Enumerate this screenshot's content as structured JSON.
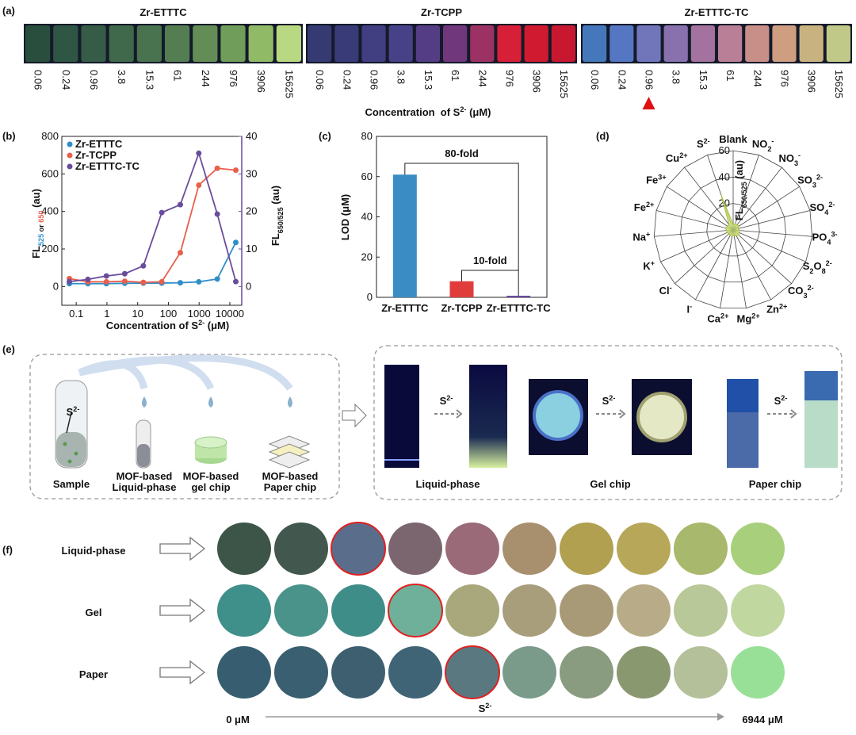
{
  "panel_a": {
    "letter": "(a)",
    "titles": [
      "Zr-ETTTC",
      "Zr-TCPP",
      "Zr-ETTTC-TC"
    ],
    "concentrations": [
      0.06,
      0.24,
      0.96,
      3.8,
      15.3,
      61,
      244,
      976,
      3906,
      15625
    ],
    "vial_colors": [
      [
        "#2c5240",
        "#325a46",
        "#3a624a",
        "#44704e",
        "#4e7a52",
        "#5a8656",
        "#6a965a",
        "#7aa85e",
        "#9cc86c",
        "#c8e88a"
      ],
      [
        "#3a3d7a",
        "#3c3e7e",
        "#45418a",
        "#4c4490",
        "#5a408c",
        "#7a3a84",
        "#a83468",
        "#e8203a",
        "#e01a30",
        "#d81830"
      ],
      [
        "#4a80c8",
        "#5a7ed0",
        "#7a7ec8",
        "#9478b8",
        "#b07aa8",
        "#c888a0",
        "#d89890",
        "#e0a888",
        "#d8c088",
        "#d0d890"
      ]
    ],
    "arrow_at": [
      2,
      2
    ],
    "axis_label": [
      {
        "t": "Concentration  of S"
      },
      {
        "t": "2-",
        "pos": "sup"
      },
      {
        "t": " (μM)"
      }
    ]
  },
  "chart_data": [
    {
      "type": "line",
      "letter": "(b)",
      "x": [
        0.06,
        0.24,
        0.96,
        3.8,
        15.3,
        61,
        244,
        976,
        3906,
        15625
      ],
      "series": [
        {
          "name": "Zr-ETTTC",
          "color": "#2f8fc8",
          "values": [
            15,
            15,
            15,
            17,
            18,
            18,
            20,
            25,
            40,
            235
          ]
        },
        {
          "name": "Zr-TCPP",
          "color": "#e8604c",
          "values": [
            42,
            25,
            25,
            28,
            22,
            25,
            180,
            540,
            630,
            620
          ]
        },
        {
          "name": "Zr-ETTTC-TC",
          "color": "#6a4c9c",
          "axis": "y2",
          "values": [
            1.3,
            1.9,
            2.8,
            3.4,
            5.5,
            19.7,
            21.8,
            35.5,
            19.3,
            1.3
          ]
        }
      ],
      "log_x": true,
      "xlim": [
        0.034,
        24400
      ],
      "xticks": [
        0.1,
        1,
        10,
        100,
        1000,
        10000
      ],
      "ylim": [
        -100,
        800
      ],
      "yticks": [
        0,
        200,
        400,
        600,
        800
      ],
      "y2lim": [
        -5,
        40
      ],
      "y2ticks": [
        0,
        10,
        20,
        30,
        40
      ],
      "legend": "upper left",
      "xlabel": [
        {
          "t": "Concentration of S"
        },
        {
          "t": "2-",
          "pos": "sup"
        },
        {
          "t": " (μM)"
        }
      ],
      "ylabel": [
        {
          "t": "FL"
        },
        {
          "t": "525",
          "pos": "sub",
          "color": "#2f8fc8"
        },
        {
          "t": " or ",
          "pos": "sub"
        },
        {
          "t": "650",
          "pos": "sub",
          "color": "#e8604c"
        },
        {
          "t": " (au)"
        }
      ],
      "y2label": [
        {
          "t": "FL"
        },
        {
          "t": "650/525",
          "pos": "sub"
        },
        {
          "t": " (au)"
        }
      ],
      "y2color": "#6a4c9c"
    },
    {
      "type": "bar",
      "letter": "(c)",
      "categories": [
        "Zr-ETTTC",
        "Zr-TCPP",
        "Zr-ETTTC-TC"
      ],
      "values": [
        61,
        8,
        0.8
      ],
      "colors": [
        "#3a8cc4",
        "#e03c3c",
        "#6a4c9c"
      ],
      "ylim": [
        0,
        80
      ],
      "yticks": [
        0,
        20,
        40,
        60,
        80
      ],
      "ylabel": "LOD (μM)",
      "annotations": [
        "80-fold",
        "10-fold"
      ]
    },
    {
      "type": "radar",
      "letter": "(d)",
      "categories": [
        [
          {
            "t": "Blank"
          }
        ],
        [
          {
            "t": "NO"
          },
          {
            "t": "2",
            "pos": "sub"
          },
          {
            "t": "-",
            "pos": "sup"
          }
        ],
        [
          {
            "t": "NO"
          },
          {
            "t": "3",
            "pos": "sub"
          },
          {
            "t": "-",
            "pos": "sup"
          }
        ],
        [
          {
            "t": "SO"
          },
          {
            "t": "3",
            "pos": "sub"
          },
          {
            "t": "2-",
            "pos": "sup"
          }
        ],
        [
          {
            "t": "SO"
          },
          {
            "t": "4",
            "pos": "sub"
          },
          {
            "t": "2-",
            "pos": "sup"
          }
        ],
        [
          {
            "t": "PO"
          },
          {
            "t": "4",
            "pos": "sub"
          },
          {
            "t": "3-",
            "pos": "sup"
          }
        ],
        [
          {
            "t": "S"
          },
          {
            "t": "2",
            "pos": "sub"
          },
          {
            "t": "O"
          },
          {
            "t": "8",
            "pos": "sub"
          },
          {
            "t": "2-",
            "pos": "sup"
          }
        ],
        [
          {
            "t": "CO"
          },
          {
            "t": "3",
            "pos": "sub"
          },
          {
            "t": "2-",
            "pos": "sup"
          }
        ],
        [
          {
            "t": "Zn"
          },
          {
            "t": "2+",
            "pos": "sup"
          }
        ],
        [
          {
            "t": "Mg"
          },
          {
            "t": "2+",
            "pos": "sup"
          }
        ],
        [
          {
            "t": "Ca"
          },
          {
            "t": "2+",
            "pos": "sup"
          }
        ],
        [
          {
            "t": "I"
          },
          {
            "t": "-",
            "pos": "sup"
          }
        ],
        [
          {
            "t": "Cl"
          },
          {
            "t": "-",
            "pos": "sup"
          }
        ],
        [
          {
            "t": "K"
          },
          {
            "t": "+",
            "pos": "sup"
          }
        ],
        [
          {
            "t": "Na"
          },
          {
            "t": "+",
            "pos": "sup"
          }
        ],
        [
          {
            "t": "Fe"
          },
          {
            "t": "2+",
            "pos": "sup"
          }
        ],
        [
          {
            "t": "Fe"
          },
          {
            "t": "3+",
            "pos": "sup"
          }
        ],
        [
          {
            "t": "Cu"
          },
          {
            "t": "2+",
            "pos": "sup"
          }
        ],
        [
          {
            "t": "S"
          },
          {
            "t": "2-",
            "pos": "sup"
          }
        ]
      ],
      "values": [
        4,
        5,
        5,
        5,
        4,
        5,
        5,
        6,
        5,
        4,
        5,
        5,
        4,
        5,
        5,
        6,
        5,
        5,
        28
      ],
      "rlim": [
        0,
        60
      ],
      "rticks": [
        20,
        40,
        60
      ],
      "rlabel": [
        {
          "t": "FL"
        },
        {
          "t": "650/525",
          "pos": "sub"
        },
        {
          "t": " (au)"
        }
      ],
      "color": "#c8e070"
    }
  ],
  "panel_e": {
    "letter": "(e)",
    "sample": "Sample",
    "analyte": [
      {
        "t": "S"
      },
      {
        "t": "2-",
        "pos": "sup"
      }
    ],
    "platforms": [
      [
        "MOF-based",
        "Liquid-phase"
      ],
      [
        "MOF-based",
        "gel chip"
      ],
      [
        "MOF-based",
        "Paper chip"
      ]
    ],
    "results": [
      "Liquid-phase",
      "Gel chip",
      "Paper chip"
    ]
  },
  "panel_f": {
    "letter": "(f)",
    "rows": [
      {
        "name": "Liquid-phase",
        "color": "#3a9a8a",
        "highlight": 2,
        "spots": [
          "#3d5548",
          "#42584e",
          "#5a6e8c",
          "#7b6670",
          "#9a6a78",
          "#a8906e",
          "#b0a050",
          "#b6a858",
          "#a8b86c",
          "#a8d07c"
        ]
      },
      {
        "name": "Gel",
        "color": "#2fa86a",
        "highlight": 3,
        "spots": [
          "#3f8f8a",
          "#4a938a",
          "#3f8d88",
          "#6fb09a",
          "#a8a87c",
          "#a89e7c",
          "#a89a76",
          "#b8ac88",
          "#b8c898",
          "#c0d8a0"
        ]
      },
      {
        "name": "Paper",
        "color": "#7b4ea0",
        "highlight": 4,
        "spots": [
          "#365e70",
          "#3a5f70",
          "#3d5f70",
          "#3f6475",
          "#5a7880",
          "#7a9a8a",
          "#8a9c80",
          "#8a9870",
          "#b4c09a",
          "#98e098"
        ]
      }
    ],
    "start": "0 μM",
    "end": "6944 μM",
    "analyte": [
      {
        "t": "S"
      },
      {
        "t": "2-",
        "pos": "sup"
      }
    ]
  }
}
